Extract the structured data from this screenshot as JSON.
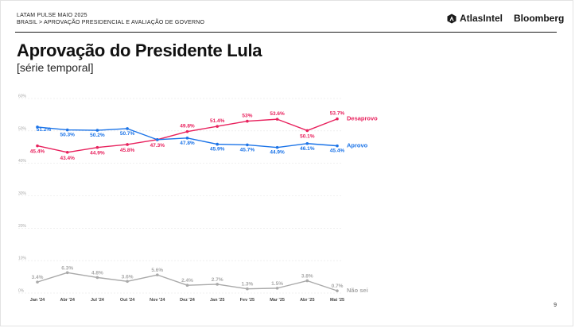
{
  "header": {
    "line1": "LATAM PULSE MAIO 2025",
    "line2": "BRASIL > APROVAÇÃO PRESIDENCIAL E AVALIAÇÃO DE GOVERNO",
    "brand_atlas": "AtlasIntel",
    "brand_bloomberg": "Bloomberg",
    "atlas_icon": "atlas-shield-icon"
  },
  "page_number": "9",
  "chart_data": {
    "type": "line",
    "title": "Aprovação do Presidente Lula",
    "subtitle": "[série temporal]",
    "categories": [
      "Jan '24",
      "Abr '24",
      "Jul '24",
      "Out '24",
      "Nov '24",
      "Dez '24",
      "Jan '25",
      "Fev '25",
      "Mar '25",
      "Abr '25",
      "Mai '25"
    ],
    "ylim": [
      0,
      60
    ],
    "yticks": [
      0,
      10,
      20,
      30,
      40,
      50,
      60
    ],
    "ytick_labels": [
      "0%",
      "10%",
      "20%",
      "30%",
      "40%",
      "50%",
      "60%"
    ],
    "grid": true,
    "legend": "series names at right end of lines",
    "series": [
      {
        "name": "Desaprovo",
        "color": "#e8215d",
        "values": [
          45.4,
          43.4,
          44.9,
          45.8,
          47.3,
          49.8,
          51.4,
          53,
          53.6,
          50.1,
          53.7
        ],
        "labels": [
          "45.4%",
          "43.4%",
          "44.9%",
          "45.8%",
          "47.3%",
          "49.8%",
          "51.4%",
          "53%",
          "53.6%",
          "50.1%",
          "53.7%"
        ]
      },
      {
        "name": "Aprovo",
        "color": "#1a73e8",
        "values": [
          51.2,
          50.3,
          50.2,
          50.7,
          47.3,
          47.8,
          45.9,
          45.7,
          44.9,
          46.1,
          45.4
        ],
        "labels": [
          "51.2%",
          "50.3%",
          "50.2%",
          "50.7%",
          "",
          "47.8%",
          "45.9%",
          "45.7%",
          "44.9%",
          "46.1%",
          "45.4%"
        ]
      },
      {
        "name": "Não sei",
        "color": "#a9a9a9",
        "values": [
          3.4,
          6.3,
          4.8,
          3.6,
          5.6,
          2.4,
          2.7,
          1.3,
          1.5,
          3.8,
          0.7
        ],
        "labels": [
          "3.4%",
          "6.3%",
          "4.8%",
          "3.6%",
          "5.6%",
          "2.4%",
          "2.7%",
          "1.3%",
          "1.5%",
          "3.8%",
          "0.7%"
        ]
      }
    ]
  }
}
